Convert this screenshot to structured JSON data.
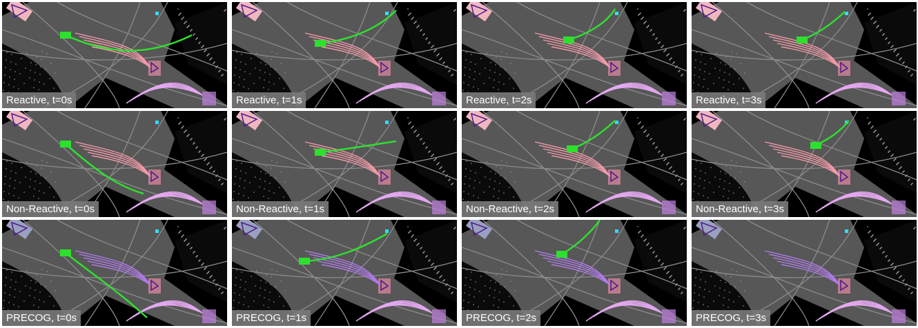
{
  "panels": [
    {
      "label": "Reactive, t=0s"
    },
    {
      "label": "Reactive, t=1s"
    },
    {
      "label": "Reactive, t=2s"
    },
    {
      "label": "Reactive, t=3s"
    },
    {
      "label": "Non-Reactive, t=0s"
    },
    {
      "label": "Non-Reactive, t=1s"
    },
    {
      "label": "Non-Reactive, t=2s"
    },
    {
      "label": "Non-Reactive, t=3s"
    },
    {
      "label": "PRECOG, t=0s"
    },
    {
      "label": "PRECOG, t=1s"
    },
    {
      "label": "PRECOG, t=2s"
    },
    {
      "label": "PRECOG, t=3s"
    }
  ]
}
